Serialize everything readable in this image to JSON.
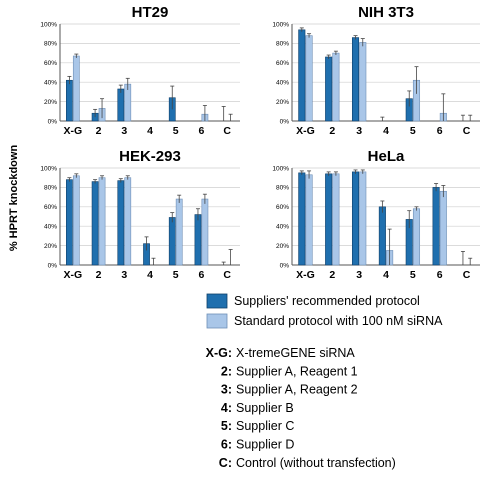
{
  "chart_data": {
    "type": "bar",
    "ylabel": "% HPRT knockdown",
    "yticks": [
      "0%",
      "20%",
      "40%",
      "60%",
      "80%",
      "100%"
    ],
    "ylim": [
      0,
      100
    ],
    "categories": [
      "X-G",
      "2",
      "3",
      "4",
      "5",
      "6",
      "C"
    ],
    "series_names": [
      "Suppliers' recommended protocol",
      "Standard protocol with 100 nM siRNA"
    ],
    "colors": [
      "#1f6fae",
      "#a9c6e8"
    ],
    "panels": [
      {
        "title": "HT29",
        "series": [
          {
            "name": "Suppliers' recommended protocol",
            "values": [
              42,
              8,
              33,
              0,
              24,
              0,
              0
            ],
            "errors": [
              4,
              4,
              4,
              0,
              12,
              0,
              15
            ]
          },
          {
            "name": "Standard protocol with 100 nM siRNA",
            "values": [
              67,
              13,
              38,
              0,
              0,
              7,
              0
            ],
            "errors": [
              2,
              10,
              6,
              0,
              0,
              9,
              7
            ]
          }
        ]
      },
      {
        "title": "NIH 3T3",
        "series": [
          {
            "name": "Suppliers' recommended protocol",
            "values": [
              94,
              66,
              86,
              0,
              23,
              0,
              0
            ],
            "errors": [
              2,
              2,
              2,
              4,
              8,
              0,
              6
            ]
          },
          {
            "name": "Standard protocol with 100 nM siRNA",
            "values": [
              88,
              70,
              81,
              0,
              42,
              8,
              0
            ],
            "errors": [
              2,
              2,
              4,
              0,
              14,
              20,
              6
            ]
          }
        ]
      },
      {
        "title": "HEK-293",
        "series": [
          {
            "name": "Suppliers' recommended protocol",
            "values": [
              88,
              86,
              87,
              22,
              49,
              52,
              0
            ],
            "errors": [
              2,
              2,
              2,
              7,
              5,
              6,
              3
            ]
          },
          {
            "name": "Standard protocol with 100 nM siRNA",
            "values": [
              92,
              90,
              90,
              0,
              68,
              68,
              0
            ],
            "errors": [
              2,
              2,
              2,
              7,
              4,
              5,
              16
            ]
          }
        ]
      },
      {
        "title": "HeLa",
        "series": [
          {
            "name": "Suppliers' recommended protocol",
            "values": [
              95,
              94,
              96,
              60,
              47,
              80,
              0
            ],
            "errors": [
              2,
              2,
              2,
              6,
              9,
              4,
              14
            ]
          },
          {
            "name": "Standard protocol with 100 nM siRNA",
            "values": [
              93,
              94,
              96,
              15,
              58,
              76,
              0
            ],
            "errors": [
              4,
              2,
              2,
              22,
              2,
              6,
              7
            ]
          }
        ]
      }
    ]
  },
  "key": [
    {
      "code": "X-G:",
      "desc": "X-tremeGENE siRNA"
    },
    {
      "code": "2:",
      "desc": "Supplier A, Reagent 1"
    },
    {
      "code": "3:",
      "desc": "Supplier A, Reagent 2"
    },
    {
      "code": "4:",
      "desc": "Supplier B"
    },
    {
      "code": "5:",
      "desc": "Supplier C"
    },
    {
      "code": "6:",
      "desc": "Supplier D"
    },
    {
      "code": "C:",
      "desc": "Control (without transfection)"
    }
  ]
}
